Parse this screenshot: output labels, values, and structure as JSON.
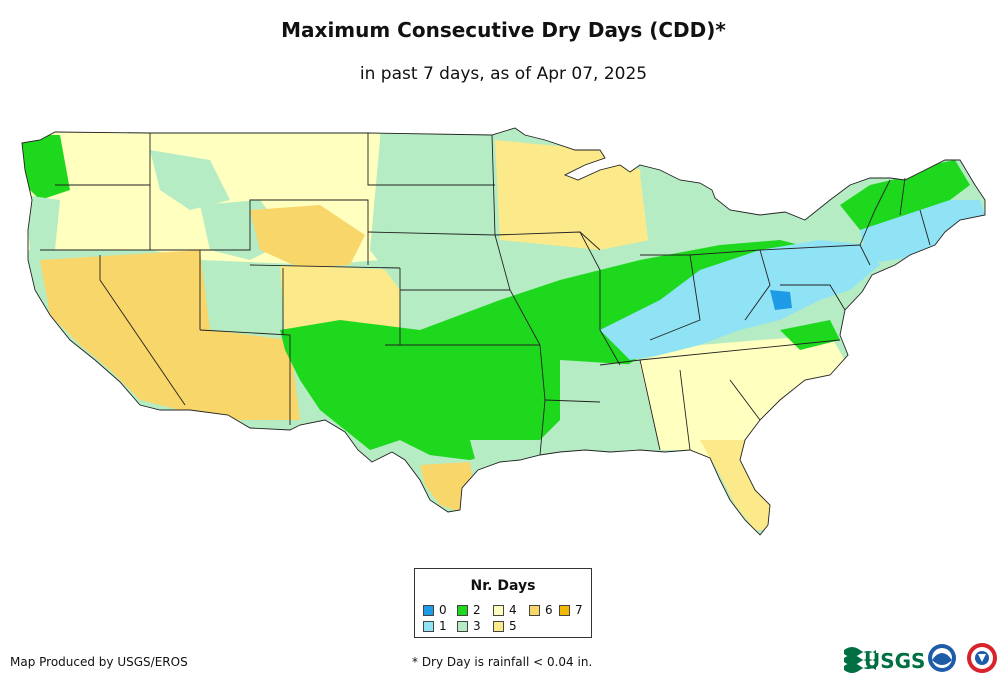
{
  "header": {
    "title": "Maximum Consecutive Dry Days (CDD)*",
    "subtitle": "in past 7 days, as of Apr 07, 2025"
  },
  "map": {
    "region": "Contiguous United States",
    "colors": {
      "ocean": "#ffffff",
      "state_border": "#222222",
      "cdd_0": "#1e9be6",
      "cdd_1": "#8fe3f5",
      "cdd_2": "#1ed81e",
      "cdd_3": "#b5ecc4",
      "cdd_4": "#ffffc0",
      "cdd_5": "#fbe98a",
      "cdd_6": "#f8d66a",
      "cdd_7": "#f3b800"
    }
  },
  "legend": {
    "title": "Nr. Days",
    "items": [
      {
        "label": "0",
        "color": "#1e9be6"
      },
      {
        "label": "1",
        "color": "#8fe3f5"
      },
      {
        "label": "2",
        "color": "#1ed81e"
      },
      {
        "label": "3",
        "color": "#b5ecc4"
      },
      {
        "label": "4",
        "color": "#ffffc0"
      },
      {
        "label": "5",
        "color": "#fbe98a"
      },
      {
        "label": "6",
        "color": "#f8d66a"
      },
      {
        "label": "7",
        "color": "#f3b800"
      }
    ]
  },
  "footer": {
    "credit": "Map Produced by USGS/EROS",
    "note": "* Dry Day is rainfall < 0.04 in.",
    "logo_text": "USGS",
    "logos": [
      "usgs-logo",
      "noaa-logo",
      "nws-logo"
    ]
  }
}
